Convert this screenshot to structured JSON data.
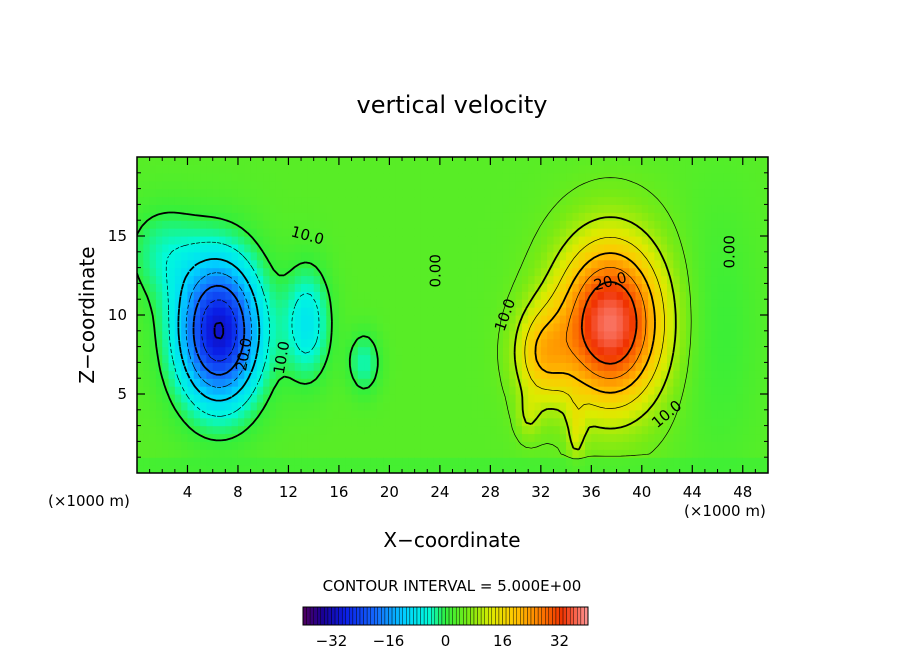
{
  "chart_data": {
    "type": "heatmap",
    "title": "vertical velocity",
    "xlabel": "X−coordinate",
    "ylabel": "Z−coordinate",
    "x_unit_left": "(×1000 m)",
    "x_unit_right": "(×1000 m)",
    "xlim": [
      0,
      50
    ],
    "ylim": [
      0,
      20
    ],
    "x_ticks": [
      4,
      8,
      12,
      16,
      20,
      24,
      28,
      32,
      36,
      40,
      44,
      48
    ],
    "y_ticks": [
      5,
      10,
      15
    ],
    "contour_interval_label": "CONTOUR INTERVAL = 5.000E+00",
    "colorbar": {
      "min": -40,
      "max": 40,
      "ticks": [
        -32,
        -16,
        0,
        16,
        32
      ],
      "tick_labels": [
        "−32",
        "−16",
        "0",
        "16",
        "32"
      ]
    },
    "contour_labels": [
      {
        "text": "10.0",
        "x": 13.5,
        "y": 15.0,
        "angle": 15
      },
      {
        "text": "20.0",
        "x": 8.5,
        "y": 7.5,
        "angle": -80
      },
      {
        "text": "10.0",
        "x": 11.5,
        "y": 7.3,
        "angle": -80
      },
      {
        "text": "0.00",
        "x": 23.7,
        "y": 12.8,
        "angle": -90
      },
      {
        "text": "0.00",
        "x": 47.0,
        "y": 14.0,
        "angle": -90
      },
      {
        "text": "10.0",
        "x": 29.2,
        "y": 10.0,
        "angle": -70
      },
      {
        "text": "20.0",
        "x": 37.5,
        "y": 12.1,
        "angle": -15
      },
      {
        "text": "10.0",
        "x": 42.0,
        "y": 3.7,
        "angle": -40
      }
    ],
    "features": [
      {
        "name": "downdraft",
        "x": 6.5,
        "z": 9.0,
        "w_min": -30
      },
      {
        "name": "updraft",
        "x": 37.5,
        "z": 9.5,
        "w_max": 30
      }
    ]
  }
}
